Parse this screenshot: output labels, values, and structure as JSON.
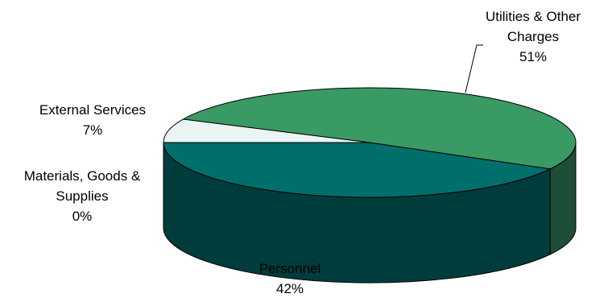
{
  "chart_data": {
    "type": "pie",
    "title": "",
    "three_d": true,
    "labels_shown": "category name and percentage",
    "slices": [
      {
        "label": "Utilities & Other Charges",
        "label_lines": [
          "Utilities & Other",
          "Charges"
        ],
        "value": 51,
        "percent_text": "51%",
        "color": "#3a9a64",
        "side_color": "#1e4e36"
      },
      {
        "label": "Personnel",
        "label_lines": [
          "Personnel"
        ],
        "value": 42,
        "percent_text": "42%",
        "color": "#006e6a",
        "side_color": "#003c3c"
      },
      {
        "label": "Materials, Goods & Supplies",
        "label_lines": [
          "Materials, Goods &",
          "Supplies"
        ],
        "value": 0,
        "percent_text": "0%",
        "color": "#1a6a6a",
        "side_color": "#0e3a3a"
      },
      {
        "label": "External Services",
        "label_lines": [
          "External Services"
        ],
        "value": 7,
        "percent_text": "7%",
        "color": "#eaf4f4",
        "side_color": "#cfdede"
      }
    ]
  }
}
